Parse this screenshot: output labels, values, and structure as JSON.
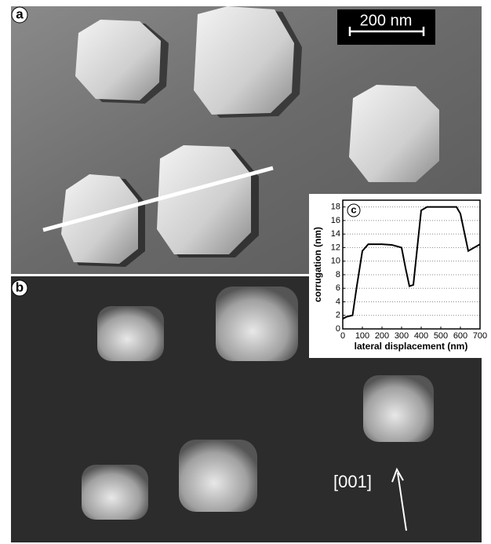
{
  "panel_labels": {
    "a": "a",
    "b": "b",
    "c": "c"
  },
  "scale_bar": "200 nm",
  "direction": "[001]",
  "chart_data": {
    "type": "line",
    "x_label": "lateral displacement (nm)",
    "y_label": "corrugation (nm)",
    "x": [
      0,
      20,
      50,
      70,
      100,
      130,
      200,
      250,
      300,
      320,
      340,
      360,
      380,
      400,
      430,
      500,
      580,
      600,
      640,
      700
    ],
    "values": [
      1.5,
      1.8,
      2,
      6,
      11.5,
      12.5,
      12.5,
      12.4,
      12,
      9,
      6.3,
      6.5,
      12,
      17.5,
      18,
      18,
      18,
      17,
      11.5,
      12.5
    ],
    "color": "#000000",
    "xlim": [
      0,
      700
    ],
    "xticks": [
      0,
      100,
      200,
      300,
      400,
      500,
      600,
      700
    ],
    "ylim": [
      0,
      19
    ],
    "yticks": [
      0,
      2,
      4,
      6,
      8,
      10,
      12,
      14,
      16,
      18
    ],
    "grid": true
  }
}
